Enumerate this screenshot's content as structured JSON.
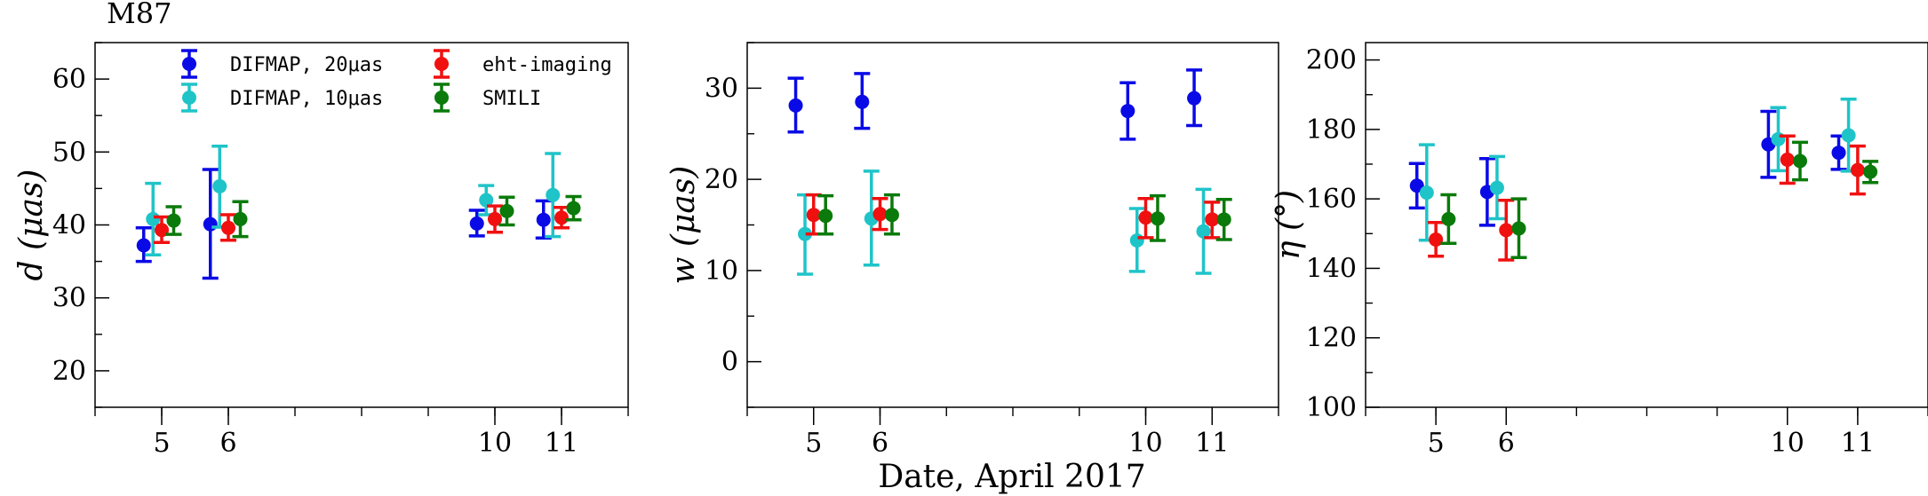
{
  "figure": {
    "source_label": "M87",
    "shared_xlabel": "Date, April 2017",
    "legend": [
      {
        "label": "DIFMAP, 20μas",
        "color": "#0a0ae6"
      },
      {
        "label": "DIFMAP, 10μas",
        "color": "#1fc4c8"
      },
      {
        "label": "eht-imaging",
        "color": "#f01010"
      },
      {
        "label": "SMILI",
        "color": "#0a7a0a"
      }
    ]
  },
  "chart_data": [
    {
      "type": "scatter",
      "subtype": "errorbar",
      "ylabel": "d (μas)",
      "xlim": [
        4,
        12
      ],
      "ylim": [
        15,
        65
      ],
      "x_ticks": [
        5,
        6,
        10,
        11
      ],
      "y_ticks": [
        20,
        30,
        40,
        50,
        60
      ],
      "categories": [
        5,
        6,
        10,
        11
      ],
      "series": [
        {
          "name": "DIFMAP, 20μas",
          "color": "#0a0ae6",
          "offset": -0.27,
          "values": [
            37.2,
            40.1,
            40.2,
            40.7
          ],
          "lower": [
            35.0,
            32.7,
            38.5,
            38.2
          ],
          "upper": [
            39.6,
            47.6,
            42.0,
            43.3
          ]
        },
        {
          "name": "DIFMAP, 10μas",
          "color": "#1fc4c8",
          "offset": -0.13,
          "values": [
            40.8,
            45.3,
            43.4,
            44.1
          ],
          "lower": [
            35.9,
            39.7,
            41.4,
            38.4
          ],
          "upper": [
            45.7,
            50.8,
            45.4,
            49.8
          ]
        },
        {
          "name": "eht-imaging",
          "color": "#f01010",
          "offset": 0.0,
          "values": [
            39.3,
            39.6,
            40.8,
            41.0
          ],
          "lower": [
            37.6,
            37.9,
            39.0,
            39.6
          ],
          "upper": [
            41.1,
            41.4,
            42.6,
            42.4
          ]
        },
        {
          "name": "SMILI",
          "color": "#0a7a0a",
          "offset": 0.18,
          "values": [
            40.6,
            40.8,
            41.9,
            42.3
          ],
          "lower": [
            38.7,
            38.4,
            40.0,
            40.7
          ],
          "upper": [
            42.5,
            43.2,
            43.8,
            43.9
          ]
        }
      ]
    },
    {
      "type": "scatter",
      "subtype": "errorbar",
      "ylabel": "w (μas)",
      "xlim": [
        4,
        12
      ],
      "ylim": [
        -5,
        35
      ],
      "x_ticks": [
        5,
        6,
        10,
        11
      ],
      "y_ticks": [
        0,
        10,
        20,
        30
      ],
      "categories": [
        5,
        6,
        10,
        11
      ],
      "series": [
        {
          "name": "DIFMAP, 20μas",
          "color": "#0a0ae6",
          "offset": -0.27,
          "values": [
            28.1,
            28.5,
            27.5,
            28.9
          ],
          "lower": [
            25.2,
            25.6,
            24.4,
            25.9
          ],
          "upper": [
            31.1,
            31.6,
            30.6,
            32.0
          ]
        },
        {
          "name": "DIFMAP, 10μas",
          "color": "#1fc4c8",
          "offset": -0.13,
          "values": [
            14.0,
            15.7,
            13.3,
            14.3
          ],
          "lower": [
            9.6,
            10.6,
            9.9,
            9.7
          ],
          "upper": [
            18.3,
            20.9,
            16.8,
            18.9
          ]
        },
        {
          "name": "eht-imaging",
          "color": "#f01010",
          "offset": 0.0,
          "values": [
            16.1,
            16.2,
            15.8,
            15.6
          ],
          "lower": [
            14.0,
            14.5,
            13.6,
            13.6
          ],
          "upper": [
            18.3,
            17.9,
            17.9,
            17.5
          ]
        },
        {
          "name": "SMILI",
          "color": "#0a7a0a",
          "offset": 0.18,
          "values": [
            16.0,
            16.1,
            15.7,
            15.6
          ],
          "lower": [
            14.0,
            14.0,
            13.3,
            13.4
          ],
          "upper": [
            18.2,
            18.3,
            18.2,
            17.8
          ]
        }
      ]
    },
    {
      "type": "scatter",
      "subtype": "errorbar",
      "ylabel": "η (°)",
      "xlim": [
        4,
        12
      ],
      "ylim": [
        100,
        205
      ],
      "x_ticks": [
        5,
        6,
        10,
        11
      ],
      "y_ticks": [
        100,
        120,
        140,
        160,
        180,
        200
      ],
      "categories": [
        5,
        6,
        10,
        11
      ],
      "series": [
        {
          "name": "DIFMAP, 20μas",
          "color": "#0a0ae6",
          "offset": -0.27,
          "values": [
            163.8,
            162.0,
            175.7,
            173.3
          ],
          "lower": [
            157.4,
            152.4,
            166.2,
            168.5
          ],
          "upper": [
            170.2,
            171.6,
            185.2,
            178.1
          ]
        },
        {
          "name": "DIFMAP, 10μas",
          "color": "#1fc4c8",
          "offset": -0.13,
          "values": [
            161.8,
            163.2,
            177.2,
            178.3
          ],
          "lower": [
            148.1,
            154.3,
            168.1,
            168.0
          ],
          "upper": [
            175.6,
            172.2,
            186.3,
            188.7
          ]
        },
        {
          "name": "eht-imaging",
          "color": "#f01010",
          "offset": 0.0,
          "values": [
            148.3,
            151.0,
            171.3,
            168.3
          ],
          "lower": [
            143.5,
            142.4,
            164.5,
            161.4
          ],
          "upper": [
            153.2,
            159.6,
            178.1,
            175.2
          ]
        },
        {
          "name": "SMILI",
          "color": "#0a7a0a",
          "offset": 0.18,
          "values": [
            154.2,
            151.5,
            170.9,
            167.8
          ],
          "lower": [
            147.2,
            143.1,
            165.5,
            164.7
          ],
          "upper": [
            161.2,
            160.0,
            176.3,
            170.8
          ]
        }
      ]
    }
  ]
}
